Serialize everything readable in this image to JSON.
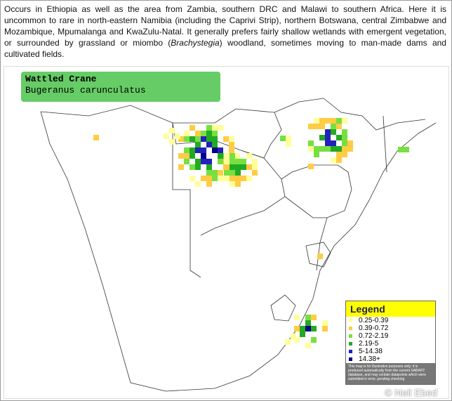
{
  "description": {
    "before": "Occurs in Ethiopia as well as the area from Zambia, southern DRC and Malawi to southern Africa. Here it is uncommon to rare in north-eastern Namibia (including the Caprivi Strip), northern Botswana, central Zimbabwe and Mozambique, Mpumalanga and KwaZulu-Natal. It generally prefers fairly shallow wetlands with emergent vegetation, or surrounded by grassland or miombo (",
    "italic": "Brachystegia",
    "after": ") woodland, sometimes moving to man-made dams and cultivated fields."
  },
  "map": {
    "title": "Wattled Crane",
    "subtitle": "Bugeranus carunculatus",
    "legend": {
      "title": "Legend",
      "items": [
        {
          "label": "0.25-0.39",
          "color": "#ffff99"
        },
        {
          "label": "0.39-0.72",
          "color": "#ffcc44"
        },
        {
          "label": "0.72-2.19",
          "color": "#77e040"
        },
        {
          "label": "2.19-5",
          "color": "#22aa22"
        },
        {
          "label": "5-14.38",
          "color": "#2222bb"
        },
        {
          "label": "14.38+",
          "color": "#000088"
        }
      ],
      "disclaimer": "This map is for illustrative purposes only; it is produced automatically from the current SABAP2 database, and may contain datapoints which were submitted in error, pending checking"
    },
    "watermark": "© Neil Ebed"
  }
}
